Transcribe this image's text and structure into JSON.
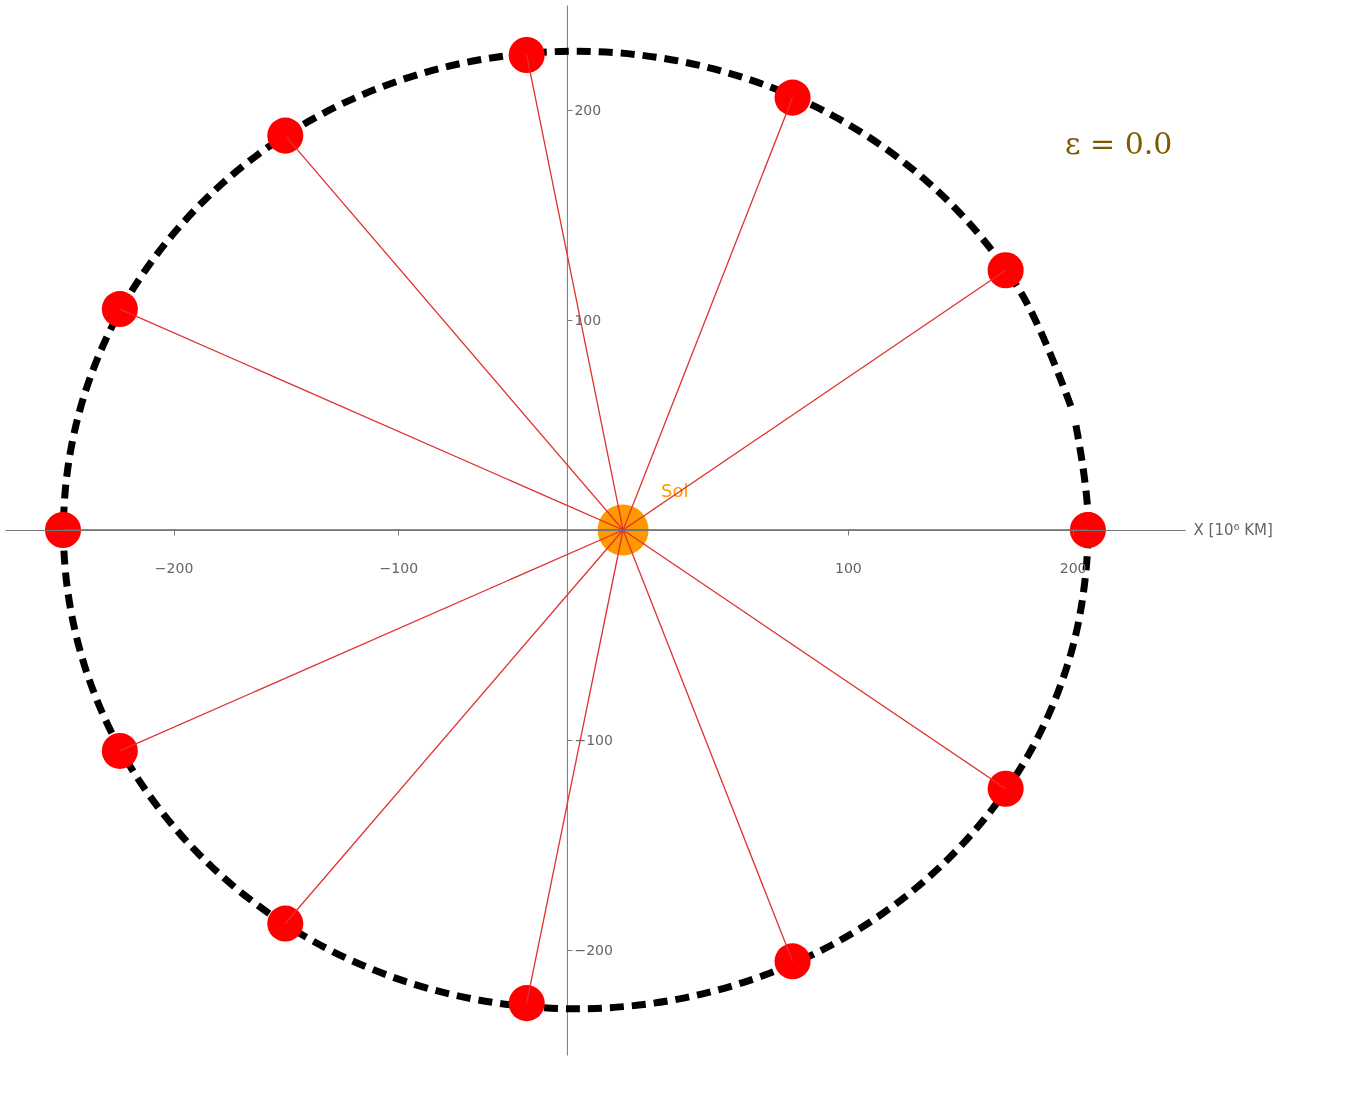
{
  "chart_data": {
    "type": "scatter",
    "xlabel": "X [10⁶ KM]",
    "xlim": [
      -275,
      250
    ],
    "ylim": [
      -250,
      250
    ],
    "xticks": [
      -200,
      -100,
      100,
      200
    ],
    "yticks": [
      -200,
      -100,
      100,
      200
    ],
    "grid": false,
    "marker": "circle",
    "annotations": [
      "ε = 0.0"
    ],
    "series": [
      {
        "name": "Sol",
        "color": "#ff9900",
        "x": [
          0
        ],
        "values": [
          0
        ]
      },
      {
        "type": "line",
        "marker": "none",
        "color": "#000000",
        "line_style": "dashed",
        "x": [
          199.2,
          176.5,
          140.2,
          93,
          38.0,
          -21,
          -80.0,
          -135,
          -182.2,
          -218.5,
          -241.2,
          -249,
          -241.2,
          -218.5,
          -182.2,
          -135,
          -80.0,
          -21,
          38.0,
          93,
          140.2,
          176.5,
          199.2,
          207,
          201.2
        ],
        "values": [
          59.0,
          114,
          161.2,
          197.5,
          220.2,
          228,
          220.2,
          197.5,
          161.2,
          114,
          59.0,
          0,
          -59.0,
          -114,
          -161.2,
          -197.5,
          -220.2,
          -228,
          -220.2,
          -197.5,
          -161.2,
          -114,
          -59.0,
          0,
          51.3
        ]
      },
      {
        "color": "#ff0000",
        "x": [
          206.8,
          170.2,
          75.4,
          -42.9,
          -150.3,
          -223.9,
          -249.2,
          -223.9,
          -150.3,
          -42.9,
          75.4,
          170.2
        ],
        "values": [
          0,
          123.7,
          205.9,
          226.2,
          187.8,
          105.2,
          0,
          -105.2,
          -187.4,
          -225.3,
          -205.4,
          -123.2
        ]
      },
      {
        "type": "line",
        "marker": "none",
        "color": "#e03030",
        "x": [
          0,
          206.8
        ],
        "values": [
          0,
          0
        ]
      },
      {
        "type": "line",
        "marker": "none",
        "color": "#e03030",
        "x": [
          0,
          170.2
        ],
        "values": [
          0,
          123.7
        ]
      },
      {
        "type": "line",
        "marker": "none",
        "color": "#e03030",
        "x": [
          0,
          75.4
        ],
        "values": [
          0,
          205.9
        ]
      },
      {
        "type": "line",
        "marker": "none",
        "color": "#e03030",
        "x": [
          0,
          -42.9
        ],
        "values": [
          0,
          226.2
        ]
      },
      {
        "type": "line",
        "marker": "none",
        "color": "#e03030",
        "x": [
          0,
          -150.3
        ],
        "values": [
          0,
          187.8
        ]
      },
      {
        "type": "line",
        "marker": "none",
        "color": "#e03030",
        "x": [
          0,
          -223.9
        ],
        "values": [
          0,
          105.2
        ]
      },
      {
        "type": "line",
        "marker": "none",
        "color": "#e03030",
        "x": [
          0,
          -249.2
        ],
        "values": [
          0,
          0
        ]
      },
      {
        "type": "line",
        "marker": "none",
        "color": "#e03030",
        "x": [
          0,
          -223.9
        ],
        "values": [
          0,
          -105.2
        ]
      },
      {
        "type": "line",
        "marker": "none",
        "color": "#e03030",
        "x": [
          0,
          -150.3
        ],
        "values": [
          0,
          -187.4
        ]
      },
      {
        "type": "line",
        "marker": "none",
        "color": "#e03030",
        "x": [
          0,
          -42.9
        ],
        "values": [
          0,
          -225.3
        ]
      },
      {
        "type": "line",
        "marker": "none",
        "color": "#e03030",
        "x": [
          0,
          75.4
        ],
        "values": [
          0,
          -205.4
        ]
      },
      {
        "type": "line",
        "marker": "none",
        "color": "#e03030",
        "x": [
          0,
          170.2
        ],
        "values": [
          0,
          -123.2
        ]
      }
    ]
  }
}
